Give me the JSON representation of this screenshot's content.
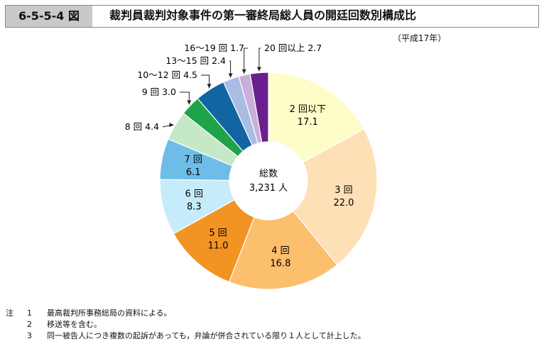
{
  "header": {
    "figure_number": "6-5-5-4 図",
    "title": "裁判員裁判対象事件の第一審終局総人員の開廷回数別構成比"
  },
  "period": "（平成17年）",
  "chart_data": {
    "type": "pie",
    "style": "donut",
    "center_label": "総数",
    "center_value": "3,231 人",
    "slices": [
      {
        "label": "2 回以下",
        "value": 17.1,
        "color": "#fdfdc8",
        "text": "inside"
      },
      {
        "label": "3 回",
        "value": 22.0,
        "color": "#fde0b6",
        "text": "inside"
      },
      {
        "label": "4 回",
        "value": 16.8,
        "color": "#fbbf6e",
        "text": "inside"
      },
      {
        "label": "5 回",
        "value": 11.0,
        "color": "#f39323",
        "text": "inside"
      },
      {
        "label": "6 回",
        "value": 8.3,
        "color": "#c6ecfb",
        "text": "inside"
      },
      {
        "label": "7 回",
        "value": 6.1,
        "color": "#6ebce8",
        "text": "inside"
      },
      {
        "label": "8 回",
        "value": 4.4,
        "color": "#c5e8c6",
        "text": "outside"
      },
      {
        "label": "9 回",
        "value": 3.0,
        "color": "#1fa34a",
        "text": "outside"
      },
      {
        "label": "10〜12 回",
        "value": 4.5,
        "color": "#1165a2",
        "text": "outside"
      },
      {
        "label": "13〜15 回",
        "value": 2.4,
        "color": "#a9bce4",
        "text": "outside"
      },
      {
        "label": "16〜19 回",
        "value": 1.7,
        "color": "#c9afd9",
        "text": "outside"
      },
      {
        "label": "20 回以上",
        "value": 2.7,
        "color": "#6a1f8e",
        "text": "outside"
      }
    ]
  },
  "notes": [
    {
      "label": "注",
      "num": "1",
      "text": "最高裁判所事務総局の資料による。"
    },
    {
      "label": "",
      "num": "2",
      "text": "移送等を含む。"
    },
    {
      "label": "",
      "num": "3",
      "text": "同一被告人につき複数の起訴があっても，弁論が併合されている限り１人として計上した。"
    }
  ]
}
